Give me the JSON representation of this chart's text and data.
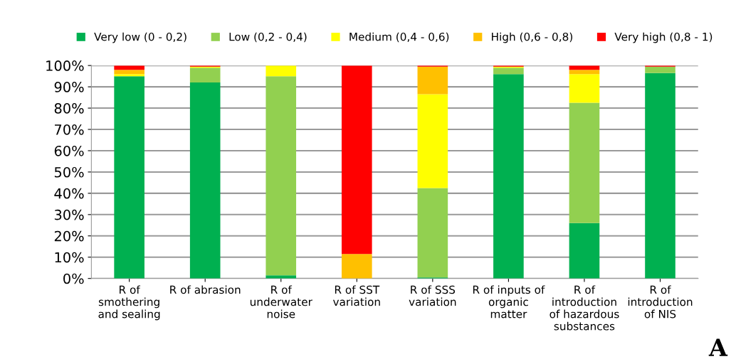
{
  "chart_data": {
    "type": "bar",
    "stacked": true,
    "categories": [
      "R of\nsmothering\nand sealing",
      "R of abrasion",
      "R of\nunderwater\nnoise",
      "R of SST\nvariation",
      "R of SSS\nvariation",
      "R of inputs of\norganic\nmatter",
      "R of\nintroduction\nof hazardous\nsubstances",
      "R of\nintroduction\nof NIS"
    ],
    "series": [
      {
        "name": "Very low (0 - 0,2)",
        "color": "#00b050",
        "values": [
          95,
          92,
          1.5,
          0,
          0.5,
          96,
          26,
          96.5
        ]
      },
      {
        "name": "Low (0,2 - 0,4)",
        "color": "#92d050",
        "values": [
          0,
          7,
          93.5,
          0,
          42,
          3,
          56.5,
          3
        ]
      },
      {
        "name": "Medium (0,4 - 0,6)",
        "color": "#ffff00",
        "values": [
          1,
          0.5,
          5,
          0,
          44,
          0.5,
          13.5,
          0
        ]
      },
      {
        "name": "High (0,6 - 0,8)",
        "color": "#ffc000",
        "values": [
          2,
          0,
          0,
          11.5,
          13,
          0,
          2,
          0
        ]
      },
      {
        "name": "Very high (0,8 - 1)",
        "color": "#ff0000",
        "values": [
          2,
          0.5,
          0,
          88.5,
          0.5,
          0.5,
          2,
          0.5
        ]
      }
    ],
    "ylim": [
      0,
      100
    ],
    "yticks": [
      {
        "value": 0,
        "label": "0%"
      },
      {
        "value": 10,
        "label": "10%"
      },
      {
        "value": 20,
        "label": "20%"
      },
      {
        "value": 30,
        "label": "30%"
      },
      {
        "value": 40,
        "label": "40%"
      },
      {
        "value": 50,
        "label": "50%"
      },
      {
        "value": 60,
        "label": "60%"
      },
      {
        "value": 70,
        "label": "70%"
      },
      {
        "value": 80,
        "label": "80%"
      },
      {
        "value": 90,
        "label": "90%"
      },
      {
        "value": 100,
        "label": "100%"
      }
    ],
    "grid": "y",
    "legend": "top",
    "annotations": [
      "A"
    ]
  }
}
